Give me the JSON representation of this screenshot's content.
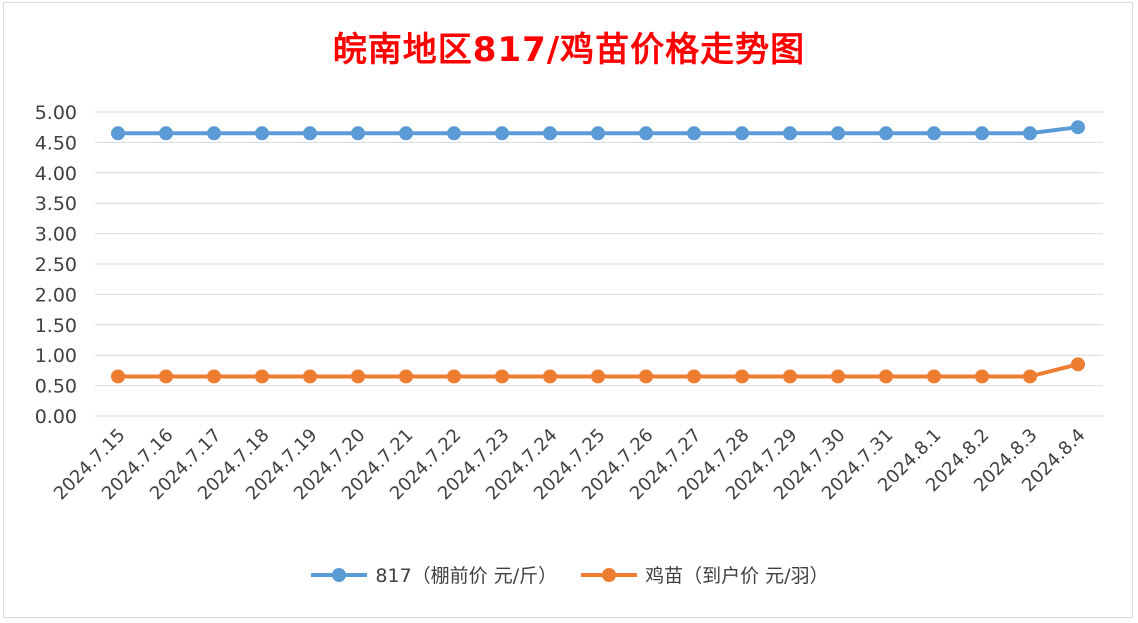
{
  "chart_data": {
    "type": "line",
    "title": "皖南地区817/鸡苗价格走势图",
    "categories": [
      "2024.7.15",
      "2024.7.16",
      "2024.7.17",
      "2024.7.18",
      "2024.7.19",
      "2024.7.20",
      "2024.7.21",
      "2024.7.22",
      "2024.7.23",
      "2024.7.24",
      "2024.7.25",
      "2024.7.26",
      "2024.7.27",
      "2024.7.28",
      "2024.7.29",
      "2024.7.30",
      "2024.7.31",
      "2024.8.1",
      "2024.8.2",
      "2024.8.3",
      "2024.8.4"
    ],
    "series": [
      {
        "name": "817（棚前价 元/斤）",
        "color": "#5b9bd5",
        "values": [
          4.65,
          4.65,
          4.65,
          4.65,
          4.65,
          4.65,
          4.65,
          4.65,
          4.65,
          4.65,
          4.65,
          4.65,
          4.65,
          4.65,
          4.65,
          4.65,
          4.65,
          4.65,
          4.65,
          4.65,
          4.75
        ]
      },
      {
        "name": "鸡苗（到户价 元/羽）",
        "color": "#ed7d31",
        "values": [
          0.65,
          0.65,
          0.65,
          0.65,
          0.65,
          0.65,
          0.65,
          0.65,
          0.65,
          0.65,
          0.65,
          0.65,
          0.65,
          0.65,
          0.65,
          0.65,
          0.65,
          0.65,
          0.65,
          0.65,
          0.85
        ]
      }
    ],
    "yticks": [
      "0.00",
      "0.50",
      "1.00",
      "1.50",
      "2.00",
      "2.50",
      "3.00",
      "3.50",
      "4.00",
      "4.50",
      "5.00"
    ],
    "ylim": [
      0,
      5
    ],
    "grid": true,
    "legend_position": "bottom",
    "title_color": "#ff0000"
  }
}
